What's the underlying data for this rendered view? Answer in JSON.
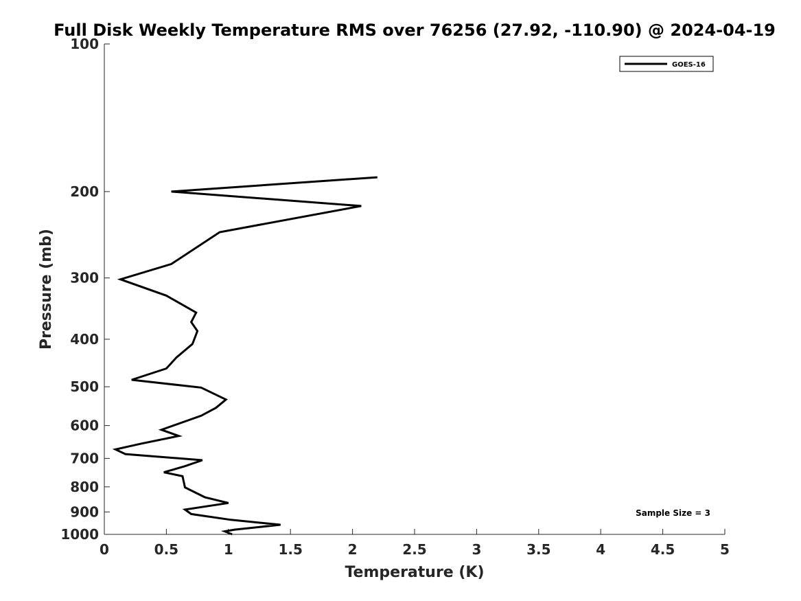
{
  "chart_data": {
    "type": "line",
    "title": "Full Disk Weekly Temperature RMS over 76256 (27.92, -110.90) @ 2024-04-19",
    "xlabel": "Temperature (K)",
    "ylabel": "Pressure (mb)",
    "xlim": [
      0,
      5
    ],
    "ylim": [
      1000,
      100
    ],
    "y_scale": "log",
    "x_ticks": [
      "0",
      "0.5",
      "1",
      "1.5",
      "2",
      "2.5",
      "3",
      "3.5",
      "4",
      "4.5",
      "5"
    ],
    "y_ticks": [
      "100",
      "200",
      "300",
      "400",
      "500",
      "600",
      "700",
      "800",
      "900",
      "1000"
    ],
    "grid": false,
    "legend": {
      "position": "top-right",
      "entries": [
        "GOES-16"
      ]
    },
    "annotation": "Sample Size = 3",
    "series": [
      {
        "name": "GOES-16",
        "color": "#000000",
        "points": [
          [
            2.2,
            187
          ],
          [
            0.54,
            200
          ],
          [
            2.07,
            214
          ],
          [
            0.93,
            242
          ],
          [
            0.54,
            281
          ],
          [
            0.13,
            302
          ],
          [
            0.5,
            326
          ],
          [
            0.74,
            353
          ],
          [
            0.7,
            369
          ],
          [
            0.75,
            385
          ],
          [
            0.71,
            409
          ],
          [
            0.58,
            436
          ],
          [
            0.5,
            459
          ],
          [
            0.22,
            484
          ],
          [
            0.78,
            502
          ],
          [
            0.98,
            531
          ],
          [
            0.9,
            552
          ],
          [
            0.78,
            573
          ],
          [
            0.46,
            612
          ],
          [
            0.6,
            630
          ],
          [
            0.3,
            653
          ],
          [
            0.09,
            671
          ],
          [
            0.17,
            686
          ],
          [
            0.79,
            706
          ],
          [
            0.65,
            726
          ],
          [
            0.48,
            747
          ],
          [
            0.63,
            761
          ],
          [
            0.65,
            802
          ],
          [
            0.81,
            840
          ],
          [
            1.0,
            863
          ],
          [
            0.65,
            890
          ],
          [
            0.7,
            909
          ],
          [
            1.02,
            934
          ],
          [
            1.42,
            956
          ],
          [
            1.05,
            978
          ],
          [
            0.97,
            986
          ],
          [
            1.03,
            1000
          ]
        ]
      }
    ]
  }
}
